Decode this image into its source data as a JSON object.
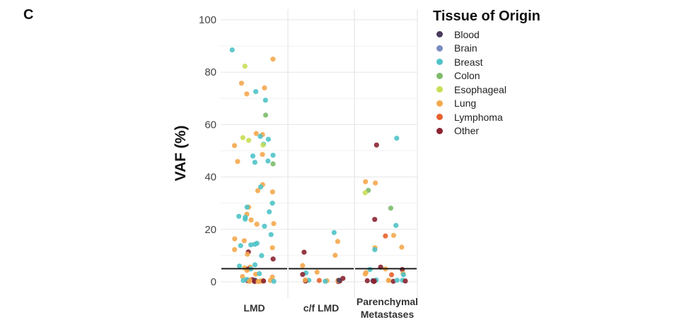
{
  "panel_letter": "C",
  "chart_data": {
    "type": "scatter",
    "subtype": "jittered strip plot",
    "ylabel": "VAF (%)",
    "xlabel": "",
    "ylim": [
      -3,
      104
    ],
    "yticks": [
      0,
      20,
      40,
      60,
      80,
      100
    ],
    "grid": true,
    "threshold_line": 5,
    "categories": [
      {
        "key": "lmd",
        "lines": [
          "LMD"
        ]
      },
      {
        "key": "cf",
        "lines": [
          "c/f LMD"
        ]
      },
      {
        "key": "par",
        "lines": [
          "Parenchymal",
          "Metastases"
        ]
      }
    ],
    "legend": {
      "title": "Tissue of Origin",
      "placement": "right",
      "items": [
        {
          "key": "blood",
          "label": "Blood",
          "color": "#4a3b5c"
        },
        {
          "key": "brain",
          "label": "Brain",
          "color": "#7b8cc2"
        },
        {
          "key": "breast",
          "label": "Breast",
          "color": "#4fc3c8"
        },
        {
          "key": "colon",
          "label": "Colon",
          "color": "#7dbb6a"
        },
        {
          "key": "esophageal",
          "label": "Esophageal",
          "color": "#c9de55"
        },
        {
          "key": "lung",
          "label": "Lung",
          "color": "#f4a94e"
        },
        {
          "key": "lymphoma",
          "label": "Lymphoma",
          "color": "#e8622f"
        },
        {
          "key": "other",
          "label": "Other",
          "color": "#8b2331"
        }
      ]
    },
    "points": {
      "lmd": [
        [
          88.5,
          "breast"
        ],
        [
          85,
          "lung"
        ],
        [
          82.3,
          "esophageal"
        ],
        [
          75.8,
          "lung"
        ],
        [
          74,
          "lung"
        ],
        [
          72.6,
          "breast"
        ],
        [
          71.7,
          "lung"
        ],
        [
          69.3,
          "breast"
        ],
        [
          63.6,
          "colon"
        ],
        [
          56.6,
          "lung"
        ],
        [
          56.2,
          "lung"
        ],
        [
          55.5,
          "breast"
        ],
        [
          54.4,
          "breast"
        ],
        [
          55,
          "esophageal"
        ],
        [
          54,
          "esophageal"
        ],
        [
          52.5,
          "breast"
        ],
        [
          52.2,
          "esophageal"
        ],
        [
          52,
          "lung"
        ],
        [
          48.6,
          "lung"
        ],
        [
          48,
          "breast"
        ],
        [
          48.3,
          "breast"
        ],
        [
          46.1,
          "breast"
        ],
        [
          45.9,
          "lung"
        ],
        [
          45.6,
          "breast"
        ],
        [
          45,
          "colon"
        ],
        [
          37.1,
          "lung"
        ],
        [
          36.2,
          "breast"
        ],
        [
          34.8,
          "lung"
        ],
        [
          34.3,
          "lung"
        ],
        [
          30,
          "breast"
        ],
        [
          28.5,
          "lung"
        ],
        [
          28.5,
          "breast"
        ],
        [
          26.7,
          "breast"
        ],
        [
          25.8,
          "lung"
        ],
        [
          25,
          "breast"
        ],
        [
          24.6,
          "breast"
        ],
        [
          23.6,
          "lung"
        ],
        [
          23.9,
          "breast"
        ],
        [
          22.2,
          "lung"
        ],
        [
          22,
          "lung"
        ],
        [
          21.2,
          "breast"
        ],
        [
          18,
          "breast"
        ],
        [
          16.4,
          "lung"
        ],
        [
          15.7,
          "lung"
        ],
        [
          14.7,
          "breast"
        ],
        [
          14.3,
          "breast"
        ],
        [
          14.1,
          "breast"
        ],
        [
          13.8,
          "breast"
        ],
        [
          13,
          "lung"
        ],
        [
          12.3,
          "lung"
        ],
        [
          11.4,
          "other"
        ],
        [
          10.5,
          "lung"
        ],
        [
          10,
          "breast"
        ],
        [
          8.7,
          "other"
        ],
        [
          6.5,
          "breast"
        ],
        [
          6,
          "breast"
        ],
        [
          5.6,
          "lung"
        ],
        [
          5.3,
          "lung"
        ],
        [
          4.9,
          "other"
        ],
        [
          4.9,
          "breast"
        ],
        [
          4.4,
          "lung"
        ],
        [
          2.9,
          "lung"
        ],
        [
          3.1,
          "breast"
        ],
        [
          2,
          "lung"
        ],
        [
          1.8,
          "lung"
        ],
        [
          0.8,
          "other"
        ],
        [
          0.5,
          "lung"
        ],
        [
          0.3,
          "breast"
        ],
        [
          0.2,
          "lung"
        ],
        [
          0.6,
          "blood"
        ],
        [
          0.1,
          "other"
        ],
        [
          0.4,
          "lung"
        ],
        [
          0.2,
          "breast"
        ],
        [
          0.7,
          "lung"
        ],
        [
          0.3,
          "other"
        ],
        [
          0.5,
          "breast"
        ],
        [
          0.1,
          "lung"
        ],
        [
          0.4,
          "other"
        ],
        [
          0.9,
          "breast"
        ],
        [
          0.2,
          "lung"
        ]
      ],
      "cf": [
        [
          18.8,
          "breast"
        ],
        [
          15.4,
          "lung"
        ],
        [
          11.3,
          "other"
        ],
        [
          10.1,
          "lung"
        ],
        [
          6.2,
          "lung"
        ],
        [
          3.7,
          "lung"
        ],
        [
          3.4,
          "breast"
        ],
        [
          2.8,
          "other"
        ],
        [
          1.3,
          "other"
        ],
        [
          0.6,
          "breast"
        ],
        [
          0.4,
          "lung"
        ],
        [
          0.3,
          "other"
        ],
        [
          0.5,
          "lymphoma"
        ],
        [
          0.2,
          "breast"
        ],
        [
          0.7,
          "lung"
        ],
        [
          0.3,
          "other"
        ],
        [
          0.5,
          "lymphoma"
        ],
        [
          0.1,
          "other"
        ],
        [
          0.4,
          "lung"
        ],
        [
          0.6,
          "blood"
        ]
      ],
      "par": [
        [
          54.8,
          "breast"
        ],
        [
          52.2,
          "other"
        ],
        [
          38.2,
          "lung"
        ],
        [
          37.7,
          "lung"
        ],
        [
          34.9,
          "colon"
        ],
        [
          34,
          "esophageal"
        ],
        [
          28.1,
          "colon"
        ],
        [
          23.8,
          "other"
        ],
        [
          21.5,
          "breast"
        ],
        [
          17.5,
          "lymphoma"
        ],
        [
          17.7,
          "lung"
        ],
        [
          13,
          "lung"
        ],
        [
          13.2,
          "lung"
        ],
        [
          12.3,
          "breast"
        ],
        [
          5.6,
          "other"
        ],
        [
          4.7,
          "other"
        ],
        [
          4.7,
          "breast"
        ],
        [
          4.9,
          "lung"
        ],
        [
          3,
          "lung"
        ],
        [
          3.2,
          "lung"
        ],
        [
          2.7,
          "lymphoma"
        ],
        [
          2.7,
          "breast"
        ],
        [
          3.5,
          "lung"
        ],
        [
          0.6,
          "breast"
        ],
        [
          0.4,
          "blood"
        ],
        [
          0.3,
          "other"
        ],
        [
          0.5,
          "lung"
        ],
        [
          0.2,
          "other"
        ],
        [
          0.7,
          "breast"
        ],
        [
          0.3,
          "other"
        ],
        [
          0.1,
          "other"
        ],
        [
          0.5,
          "lung"
        ],
        [
          0.4,
          "other"
        ],
        [
          0.6,
          "breast"
        ]
      ]
    }
  }
}
